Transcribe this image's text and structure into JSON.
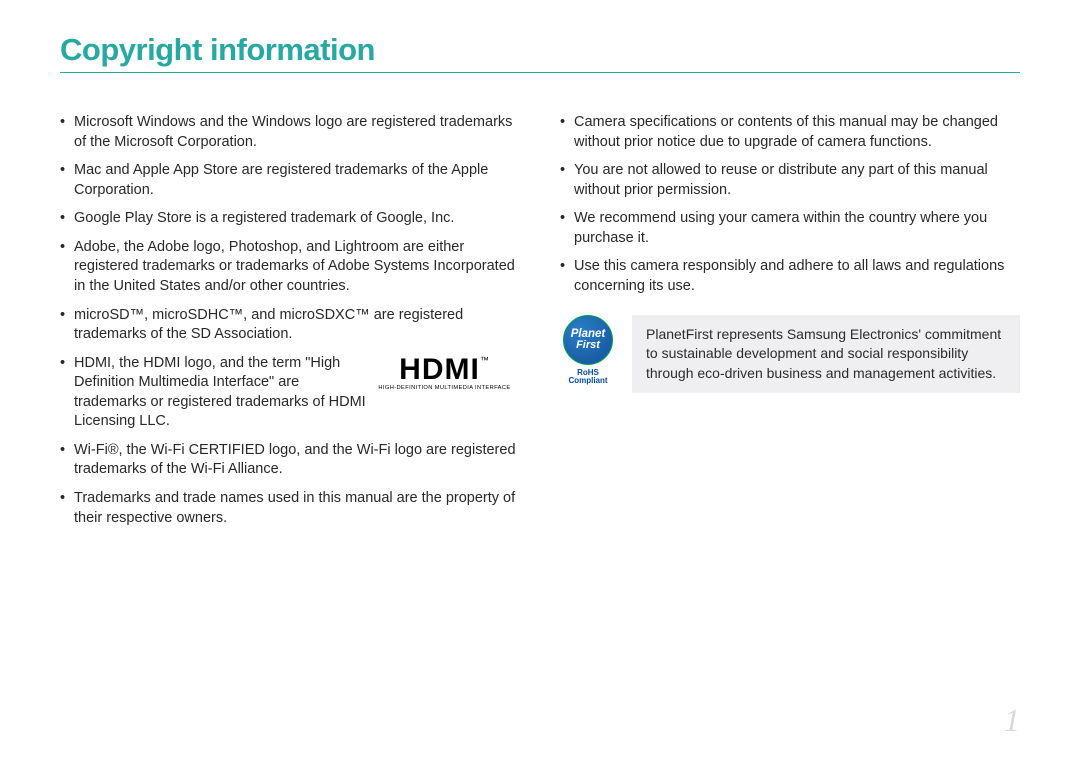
{
  "title": "Copyright information",
  "title_color": "#27a8a0",
  "underline_color": "#27a8a0",
  "text_color": "#282828",
  "page_number": "1",
  "page_number_color": "#d9d9d9",
  "hdmi": {
    "main": "HDMI",
    "tm": "™",
    "sub": "HIGH-DEFINITION MULTIMEDIA INTERFACE"
  },
  "left_bullets": [
    "Microsoft Windows and the Windows logo are registered trademarks of the Microsoft Corporation.",
    "Mac and Apple App Store are registered trademarks of the Apple Corporation.",
    "Google Play Store is a registered trademark of Google, Inc.",
    "Adobe, the Adobe logo, Photoshop, and Lightroom are either registered trademarks or trademarks of Adobe Systems Incorporated in the United States and/or other countries.",
    "microSD™, microSDHC™, and microSDXC™ are registered trademarks of the SD Association.",
    "HDMI, the HDMI logo, and the term \"High Definition Multimedia Interface\" are trademarks or registered trademarks of HDMI Licensing LLC.",
    "Wi-Fi®, the Wi-Fi CERTIFIED logo, and the Wi-Fi logo are registered trademarks of the Wi-Fi Alliance.",
    "Trademarks and trade names used in this manual are the property of their respective owners."
  ],
  "right_bullets": [
    "Camera specifications or contents of this manual may be changed without prior notice due to upgrade of camera functions.",
    "You are not allowed to reuse or distribute any part of this manual without prior permission.",
    "We recommend using your camera within the country where you purchase it.",
    "Use this camera responsibly and adhere to all laws and regulations concerning its use."
  ],
  "callout": {
    "badge_top": "Planet",
    "badge_bottom": "First",
    "badge_border_color": "#00a550",
    "badge_bg_from": "#2a7fc4",
    "badge_bg_to": "#1a5da6",
    "rohs_line1": "RoHS",
    "rohs_line2": "Compliant",
    "rohs_color": "#004a9e",
    "text": "PlanetFirst represents Samsung Electronics' commitment to sustainable development and social responsibility through eco-driven business and management activities.",
    "box_bg": "#efeff1"
  }
}
